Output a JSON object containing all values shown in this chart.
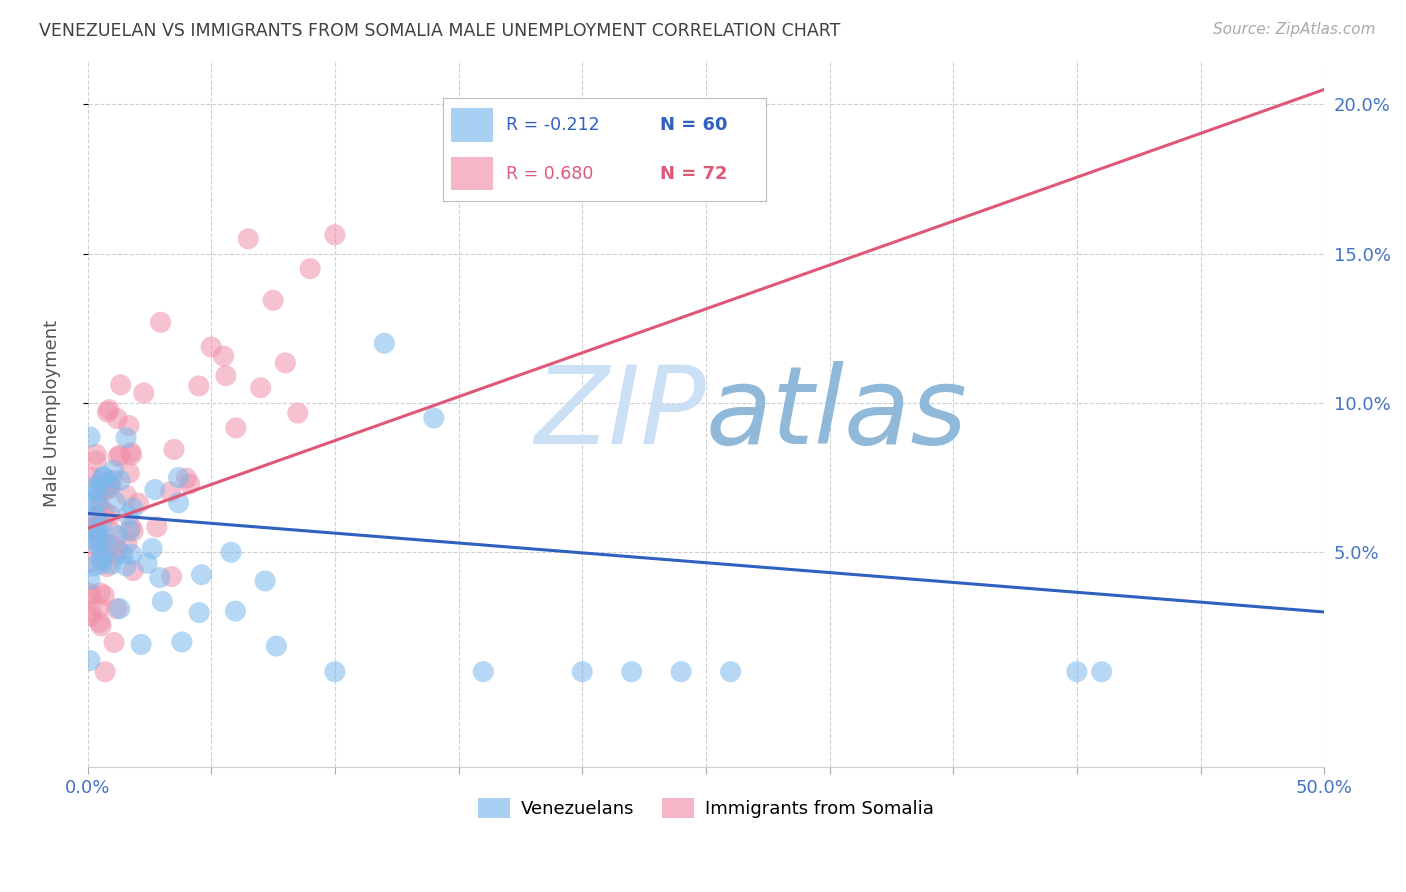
{
  "title": "VENEZUELAN VS IMMIGRANTS FROM SOMALIA MALE UNEMPLOYMENT CORRELATION CHART",
  "source": "Source: ZipAtlas.com",
  "ylabel": "Male Unemployment",
  "xlim": [
    0.0,
    0.5
  ],
  "ylim": [
    -0.022,
    0.215
  ],
  "xticks": [
    0.0,
    0.05,
    0.1,
    0.15,
    0.2,
    0.25,
    0.3,
    0.35,
    0.4,
    0.45,
    0.5
  ],
  "yticks": [
    0.05,
    0.1,
    0.15,
    0.2
  ],
  "ytick_labels": [
    "5.0%",
    "10.0%",
    "15.0%",
    "20.0%"
  ],
  "venezuelan_color": "#7ab8ed",
  "somalia_color": "#f090a8",
  "venezuela_line_color": "#3060c0",
  "somalia_line_color": "#e05878",
  "background_color": "#ffffff",
  "grid_color": "#d0d0d0",
  "axis_label_color": "#4472c4",
  "title_color": "#404040",
  "watermark_zip_color": "#cce0f5",
  "watermark_atlas_color": "#90b8d8",
  "venezuelan_R": "-0.212",
  "venezuelan_N": "60",
  "somalia_R": "0.680",
  "somalia_N": "72",
  "ven_trend_x0": 0.0,
  "ven_trend_y0": 0.063,
  "ven_trend_x1": 0.5,
  "ven_trend_y1": 0.03,
  "som_trend_x0": 0.0,
  "som_trend_y0": 0.058,
  "som_trend_x1": 0.5,
  "som_trend_y1": 0.205
}
